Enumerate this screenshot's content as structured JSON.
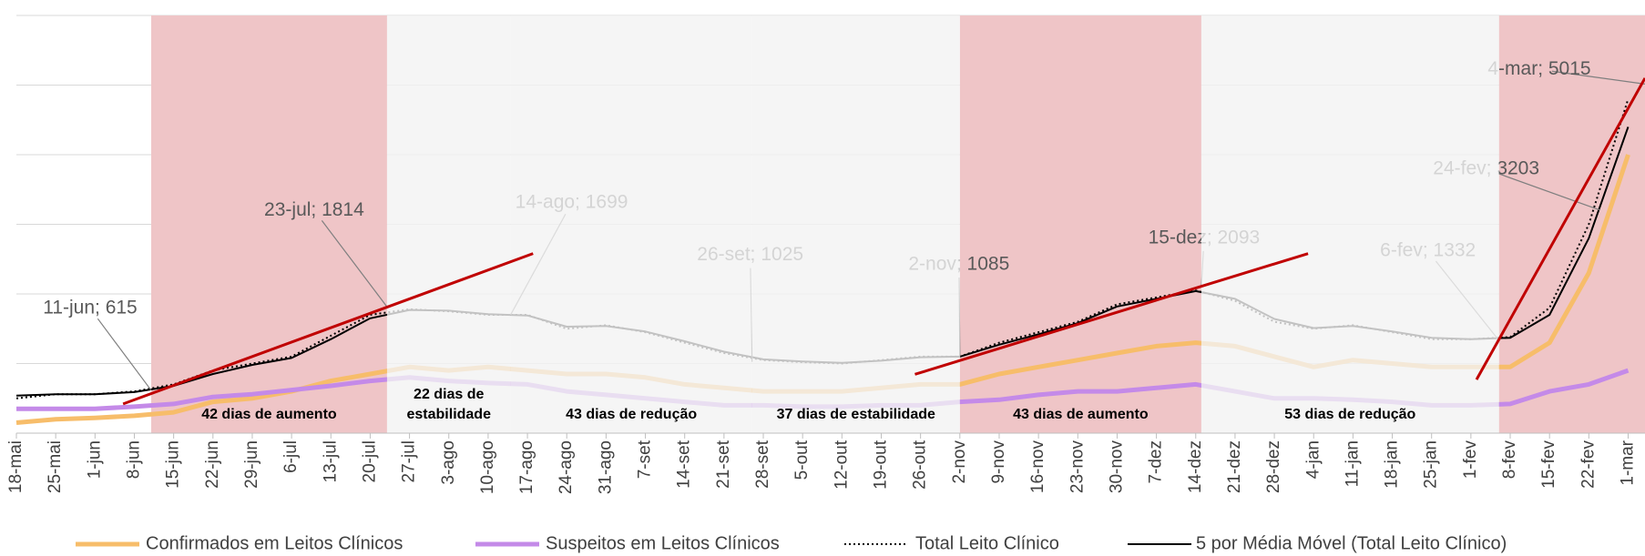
{
  "chart_data": {
    "type": "line",
    "categories": [
      "18-mai",
      "25-mai",
      "1-jun",
      "8-jun",
      "15-jun",
      "22-jun",
      "29-jun",
      "6-jul",
      "13-jul",
      "20-jul",
      "27-jul",
      "3-ago",
      "10-ago",
      "17-ago",
      "24-ago",
      "31-ago",
      "7-set",
      "14-set",
      "21-set",
      "28-set",
      "5-out",
      "12-out",
      "19-out",
      "26-out",
      "2-nov",
      "9-nov",
      "16-nov",
      "23-nov",
      "30-nov",
      "7-dez",
      "14-dez",
      "21-dez",
      "28-dez",
      "4-jan",
      "11-jan",
      "18-jan",
      "25-jan",
      "1-fev",
      "8-fev",
      "15-fev",
      "22-fev",
      "1-mar"
    ],
    "xlim": [
      "18-mai",
      "4-mar"
    ],
    "ylim": [
      0,
      6000
    ],
    "yticks": [
      0,
      1000,
      2000,
      3000,
      4000,
      5000,
      6000
    ],
    "grid": true,
    "series": [
      {
        "name": "Confirmados em Leitos Clínicos",
        "color": "#f7bd6a",
        "style": "solid",
        "width": 5,
        "values": [
          150,
          200,
          220,
          250,
          300,
          450,
          500,
          600,
          750,
          850,
          950,
          900,
          950,
          900,
          850,
          850,
          800,
          700,
          650,
          600,
          600,
          600,
          650,
          700,
          700,
          850,
          950,
          1050,
          1150,
          1250,
          1300,
          1250,
          1100,
          950,
          1050,
          1000,
          950,
          950,
          950,
          1300,
          2300,
          4000
        ]
      },
      {
        "name": "Suspeitos em Leitos Clínicos",
        "color": "#c48ae8",
        "style": "solid",
        "width": 5,
        "values": [
          350,
          350,
          350,
          380,
          420,
          520,
          560,
          620,
          680,
          750,
          800,
          750,
          720,
          700,
          600,
          550,
          500,
          450,
          400,
          400,
          380,
          380,
          400,
          400,
          450,
          480,
          550,
          600,
          600,
          650,
          700,
          600,
          500,
          500,
          480,
          450,
          400,
          400,
          420,
          600,
          700,
          900
        ]
      },
      {
        "name": "Total Leito Clínico",
        "color": "#000000",
        "style": "dotted",
        "width": 2,
        "values": [
          500,
          560,
          560,
          600,
          700,
          900,
          1000,
          1100,
          1400,
          1700,
          1780,
          1750,
          1700,
          1700,
          1500,
          1550,
          1450,
          1300,
          1150,
          1050,
          1020,
          1000,
          1050,
          1100,
          1100,
          1300,
          1450,
          1600,
          1850,
          1950,
          2050,
          1900,
          1600,
          1500,
          1550,
          1450,
          1350,
          1350,
          1380,
          1800,
          3000,
          4800
        ]
      },
      {
        "name": "5 por Média Móvel (Total Leito Clínico)",
        "color": "#000000",
        "style": "solid",
        "width": 2,
        "values": [
          540,
          560,
          560,
          590,
          680,
          850,
          980,
          1080,
          1350,
          1650,
          1770,
          1760,
          1710,
          1690,
          1530,
          1540,
          1460,
          1320,
          1170,
          1060,
          1030,
          1010,
          1040,
          1090,
          1100,
          1270,
          1420,
          1580,
          1820,
          1930,
          2040,
          1930,
          1640,
          1510,
          1540,
          1460,
          1370,
          1350,
          1370,
          1700,
          2800,
          4400
        ]
      }
    ],
    "periods": [
      {
        "start": "11-jun",
        "end": "23-jul",
        "color": "#efc5c7",
        "fade": false,
        "label": [
          "42 dias de aumento"
        ]
      },
      {
        "start": "23-jul",
        "end": "14-ago",
        "color": "#f2f2f2",
        "fade": true,
        "label": [
          "22 dias de",
          "estabilidade"
        ]
      },
      {
        "start": "14-ago",
        "end": "26-set",
        "color": "#f2f2f2",
        "fade": true,
        "label": [
          "43 dias de redução"
        ]
      },
      {
        "start": "26-set",
        "end": "2-nov",
        "color": "#f2f2f2",
        "fade": true,
        "label": [
          "37 dias de estabilidade"
        ]
      },
      {
        "start": "2-nov",
        "end": "15-dez",
        "color": "#efc5c7",
        "fade": false,
        "label": [
          "43 dias de aumento"
        ]
      },
      {
        "start": "15-dez",
        "end": "6-fev",
        "color": "#f2f2f2",
        "fade": true,
        "label": [
          "53 dias de redução"
        ]
      },
      {
        "start": "6-fev",
        "end": "4-mar",
        "color": "#efc5c7",
        "fade": false,
        "label": []
      }
    ],
    "annotations": [
      {
        "date": "11-jun",
        "value": 615,
        "label": "11-jun; 615"
      },
      {
        "date": "23-jul",
        "value": 1814,
        "label": "23-jul; 1814"
      },
      {
        "date": "14-ago",
        "value": 1699,
        "label": "14-ago; 1699"
      },
      {
        "date": "26-set",
        "value": 1025,
        "label": "26-set; 1025"
      },
      {
        "date": "2-nov",
        "value": 1085,
        "label": "2-nov; 1085"
      },
      {
        "date": "15-dez",
        "value": 2093,
        "label": "15-dez; 2093"
      },
      {
        "date": "6-fev",
        "value": 1332,
        "label": "6-fev; 1332"
      },
      {
        "date": "24-fev",
        "value": 3203,
        "label": "24-fev; 3203"
      },
      {
        "date": "4-mar",
        "value": 5015,
        "label": "4-mar; 5015"
      }
    ],
    "trendlines": [
      {
        "color": "#c00000",
        "x": [
          "6-jun",
          "18-ago"
        ],
        "values": [
          420,
          2580
        ]
      },
      {
        "color": "#c00000",
        "x": [
          "25-out",
          "3-jan"
        ],
        "values": [
          845,
          2580
        ]
      },
      {
        "color": "#c00000",
        "x": [
          "2-fev",
          "4-mar"
        ],
        "values": [
          770,
          5100
        ]
      }
    ]
  }
}
